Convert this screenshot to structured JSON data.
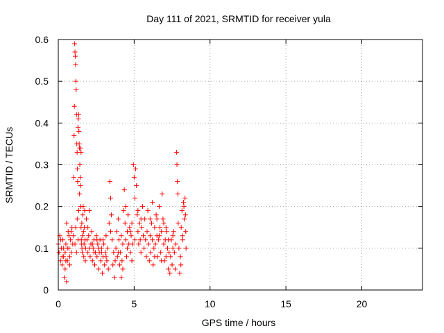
{
  "chart_data": {
    "type": "scatter",
    "title": "Day 111 of 2021, SRMTID for receiver yula",
    "xlabel": "GPS time / hours",
    "ylabel": "SRMTID / TECUs",
    "xlim": [
      0,
      24
    ],
    "ylim": [
      0,
      0.6
    ],
    "xticks": [
      0,
      5,
      10,
      15,
      20
    ],
    "xtick_labels": [
      "0",
      "5",
      "10",
      "15",
      "20"
    ],
    "yticks": [
      0,
      0.1,
      0.2,
      0.3,
      0.4,
      0.5,
      0.6
    ],
    "ytick_labels": [
      "0",
      "0.1",
      "0.2",
      "0.3",
      "0.4",
      "0.5",
      "0.6"
    ],
    "grid": true,
    "marker": "+",
    "color": "#ff0000",
    "series": [
      {
        "name": "SRMTID",
        "points": [
          [
            0.0,
            0.11
          ],
          [
            0.05,
            0.09
          ],
          [
            0.1,
            0.13
          ],
          [
            0.15,
            0.07
          ],
          [
            0.2,
            0.1
          ],
          [
            0.25,
            0.06
          ],
          [
            0.3,
            0.12
          ],
          [
            0.35,
            0.08
          ],
          [
            0.4,
            0.03
          ],
          [
            0.45,
            0.09
          ],
          [
            0.5,
            0.11
          ],
          [
            0.55,
            0.02
          ],
          [
            0.6,
            0.07
          ],
          [
            0.65,
            0.14
          ],
          [
            0.7,
            0.1
          ],
          [
            0.75,
            0.06
          ],
          [
            0.8,
            0.12
          ],
          [
            0.85,
            0.09
          ],
          [
            0.9,
            0.15
          ],
          [
            0.95,
            0.11
          ],
          [
            0.25,
            0.08
          ],
          [
            0.45,
            0.05
          ],
          [
            0.55,
            0.16
          ],
          [
            0.6,
            0.1
          ],
          [
            0.7,
            0.13
          ],
          [
            0.75,
            0.08
          ],
          [
            0.85,
            0.14
          ],
          [
            0.35,
            0.1
          ],
          [
            0.15,
            0.12
          ],
          [
            0.5,
            0.07
          ],
          [
            1.0,
            0.13
          ],
          [
            1.02,
            0.27
          ],
          [
            1.04,
            0.37
          ],
          [
            1.06,
            0.44
          ],
          [
            1.08,
            0.59
          ],
          [
            1.1,
            0.57
          ],
          [
            1.12,
            0.56
          ],
          [
            1.14,
            0.54
          ],
          [
            1.16,
            0.5
          ],
          [
            1.18,
            0.48
          ],
          [
            1.2,
            0.42
          ],
          [
            1.22,
            0.35
          ],
          [
            1.24,
            0.33
          ],
          [
            1.26,
            0.29
          ],
          [
            1.28,
            0.26
          ],
          [
            1.3,
            0.39
          ],
          [
            1.32,
            0.41
          ],
          [
            1.34,
            0.42
          ],
          [
            1.36,
            0.38
          ],
          [
            1.38,
            0.35
          ],
          [
            1.4,
            0.34
          ],
          [
            1.42,
            0.3
          ],
          [
            1.44,
            0.27
          ],
          [
            1.46,
            0.25
          ],
          [
            1.48,
            0.2
          ],
          [
            1.5,
            0.15
          ],
          [
            1.52,
            0.12
          ],
          [
            1.54,
            0.11
          ],
          [
            1.56,
            0.1
          ],
          [
            1.58,
            0.09
          ],
          [
            1.6,
            0.13
          ],
          [
            1.62,
            0.18
          ],
          [
            1.64,
            0.2
          ],
          [
            1.66,
            0.14
          ],
          [
            1.68,
            0.08
          ],
          [
            1.7,
            0.11
          ],
          [
            1.72,
            0.15
          ],
          [
            1.74,
            0.19
          ],
          [
            1.76,
            0.12
          ],
          [
            1.78,
            0.07
          ],
          [
            1.1,
            0.11
          ],
          [
            1.15,
            0.15
          ],
          [
            1.2,
            0.09
          ],
          [
            1.25,
            0.17
          ],
          [
            1.3,
            0.12
          ],
          [
            1.35,
            0.19
          ],
          [
            1.4,
            0.23
          ],
          [
            1.45,
            0.34
          ],
          [
            1.5,
            0.33
          ],
          [
            1.55,
            0.16
          ],
          [
            1.8,
            0.1
          ],
          [
            1.85,
            0.17
          ],
          [
            1.9,
            0.12
          ],
          [
            1.95,
            0.09
          ],
          [
            2.0,
            0.13
          ],
          [
            2.05,
            0.19
          ],
          [
            2.1,
            0.08
          ],
          [
            2.15,
            0.11
          ],
          [
            2.2,
            0.14
          ],
          [
            2.25,
            0.07
          ],
          [
            2.3,
            0.1
          ],
          [
            2.35,
            0.12
          ],
          [
            2.4,
            0.06
          ],
          [
            2.45,
            0.09
          ],
          [
            2.5,
            0.13
          ],
          [
            2.55,
            0.08
          ],
          [
            2.6,
            0.11
          ],
          [
            2.65,
            0.05
          ],
          [
            2.7,
            0.09
          ],
          [
            2.75,
            0.12
          ],
          [
            2.8,
            0.07
          ],
          [
            2.85,
            0.1
          ],
          [
            2.9,
            0.04
          ],
          [
            2.95,
            0.08
          ],
          [
            3.0,
            0.11
          ],
          [
            3.05,
            0.06
          ],
          [
            3.1,
            0.09
          ],
          [
            3.15,
            0.13
          ],
          [
            3.2,
            0.07
          ],
          [
            3.25,
            0.1
          ],
          [
            3.3,
            0.05
          ],
          [
            3.35,
            0.16
          ],
          [
            3.4,
            0.26
          ],
          [
            3.45,
            0.22
          ],
          [
            3.5,
            0.18
          ],
          [
            3.55,
            0.12
          ],
          [
            3.6,
            0.06
          ],
          [
            3.65,
            0.09
          ],
          [
            3.7,
            0.03
          ],
          [
            3.75,
            0.07
          ],
          [
            1.95,
            0.15
          ],
          [
            2.25,
            0.11
          ],
          [
            2.55,
            0.12
          ],
          [
            2.85,
            0.09
          ],
          [
            3.15,
            0.08
          ],
          [
            3.45,
            0.14
          ],
          [
            2.05,
            0.1
          ],
          [
            2.35,
            0.09
          ],
          [
            2.65,
            0.1
          ],
          [
            2.95,
            0.12
          ],
          [
            3.8,
            0.1
          ],
          [
            3.85,
            0.14
          ],
          [
            3.9,
            0.08
          ],
          [
            3.95,
            0.17
          ],
          [
            4.0,
            0.12
          ],
          [
            4.05,
            0.06
          ],
          [
            4.1,
            0.09
          ],
          [
            4.15,
            0.03
          ],
          [
            4.2,
            0.07
          ],
          [
            4.25,
            0.11
          ],
          [
            4.3,
            0.19
          ],
          [
            4.35,
            0.24
          ],
          [
            4.4,
            0.16
          ],
          [
            4.45,
            0.12
          ],
          [
            4.5,
            0.08
          ],
          [
            4.55,
            0.14
          ],
          [
            4.6,
            0.18
          ],
          [
            4.65,
            0.11
          ],
          [
            4.7,
            0.15
          ],
          [
            4.75,
            0.09
          ],
          [
            4.8,
            0.13
          ],
          [
            4.85,
            0.07
          ],
          [
            4.9,
            0.11
          ],
          [
            4.95,
            0.3
          ],
          [
            5.0,
            0.27
          ],
          [
            5.05,
            0.22
          ],
          [
            5.1,
            0.29
          ],
          [
            5.15,
            0.25
          ],
          [
            5.2,
            0.18
          ],
          [
            5.25,
            0.14
          ],
          [
            5.3,
            0.11
          ],
          [
            5.35,
            0.16
          ],
          [
            5.4,
            0.12
          ],
          [
            5.45,
            0.09
          ],
          [
            5.5,
            0.15
          ],
          [
            5.55,
            0.2
          ],
          [
            5.6,
            0.13
          ],
          [
            5.65,
            0.1
          ],
          [
            5.7,
            0.17
          ],
          [
            5.75,
            0.12
          ],
          [
            3.95,
            0.09
          ],
          [
            4.25,
            0.05
          ],
          [
            4.55,
            0.1
          ],
          [
            4.85,
            0.16
          ],
          [
            5.05,
            0.12
          ],
          [
            5.25,
            0.19
          ],
          [
            5.45,
            0.17
          ],
          [
            4.15,
            0.13
          ],
          [
            4.45,
            0.2
          ],
          [
            4.75,
            0.14
          ],
          [
            5.8,
            0.08
          ],
          [
            5.85,
            0.14
          ],
          [
            5.9,
            0.19
          ],
          [
            5.95,
            0.11
          ],
          [
            6.0,
            0.07
          ],
          [
            6.05,
            0.13
          ],
          [
            6.1,
            0.09
          ],
          [
            6.15,
            0.16
          ],
          [
            6.2,
            0.12
          ],
          [
            6.25,
            0.06
          ],
          [
            6.3,
            0.1
          ],
          [
            6.35,
            0.15
          ],
          [
            6.4,
            0.11
          ],
          [
            6.45,
            0.18
          ],
          [
            6.5,
            0.13
          ],
          [
            6.55,
            0.08
          ],
          [
            6.6,
            0.12
          ],
          [
            6.65,
            0.2
          ],
          [
            6.7,
            0.15
          ],
          [
            6.75,
            0.09
          ],
          [
            6.8,
            0.14
          ],
          [
            6.85,
            0.23
          ],
          [
            6.9,
            0.17
          ],
          [
            6.95,
            0.11
          ],
          [
            7.0,
            0.07
          ],
          [
            7.05,
            0.12
          ],
          [
            7.1,
            0.08
          ],
          [
            7.15,
            0.14
          ],
          [
            7.2,
            0.1
          ],
          [
            7.25,
            0.05
          ],
          [
            7.3,
            0.09
          ],
          [
            7.35,
            0.04
          ],
          [
            7.4,
            0.08
          ],
          [
            7.45,
            0.12
          ],
          [
            7.5,
            0.06
          ],
          [
            7.55,
            0.1
          ],
          [
            7.6,
            0.14
          ],
          [
            7.65,
            0.09
          ],
          [
            7.7,
            0.05
          ],
          [
            7.75,
            0.11
          ],
          [
            7.8,
            0.33
          ],
          [
            7.82,
            0.3
          ],
          [
            7.85,
            0.26
          ],
          [
            7.88,
            0.23
          ],
          [
            7.9,
            0.16
          ],
          [
            7.95,
            0.1
          ],
          [
            8.0,
            0.04
          ],
          [
            8.05,
            0.08
          ],
          [
            8.1,
            0.15
          ],
          [
            8.15,
            0.19
          ],
          [
            8.2,
            0.12
          ],
          [
            8.25,
            0.21
          ],
          [
            8.3,
            0.17
          ],
          [
            8.35,
            0.22
          ],
          [
            8.4,
            0.14
          ],
          [
            8.42,
            0.1
          ],
          [
            8.38,
            0.18
          ],
          [
            8.28,
            0.2
          ],
          [
            8.18,
            0.13
          ],
          [
            8.08,
            0.06
          ],
          [
            6.05,
            0.17
          ],
          [
            6.35,
            0.08
          ],
          [
            6.65,
            0.13
          ],
          [
            6.95,
            0.16
          ],
          [
            7.25,
            0.12
          ],
          [
            7.55,
            0.13
          ],
          [
            6.2,
            0.21
          ],
          [
            6.5,
            0.17
          ],
          [
            6.8,
            0.07
          ],
          [
            7.1,
            0.15
          ]
        ]
      }
    ]
  }
}
